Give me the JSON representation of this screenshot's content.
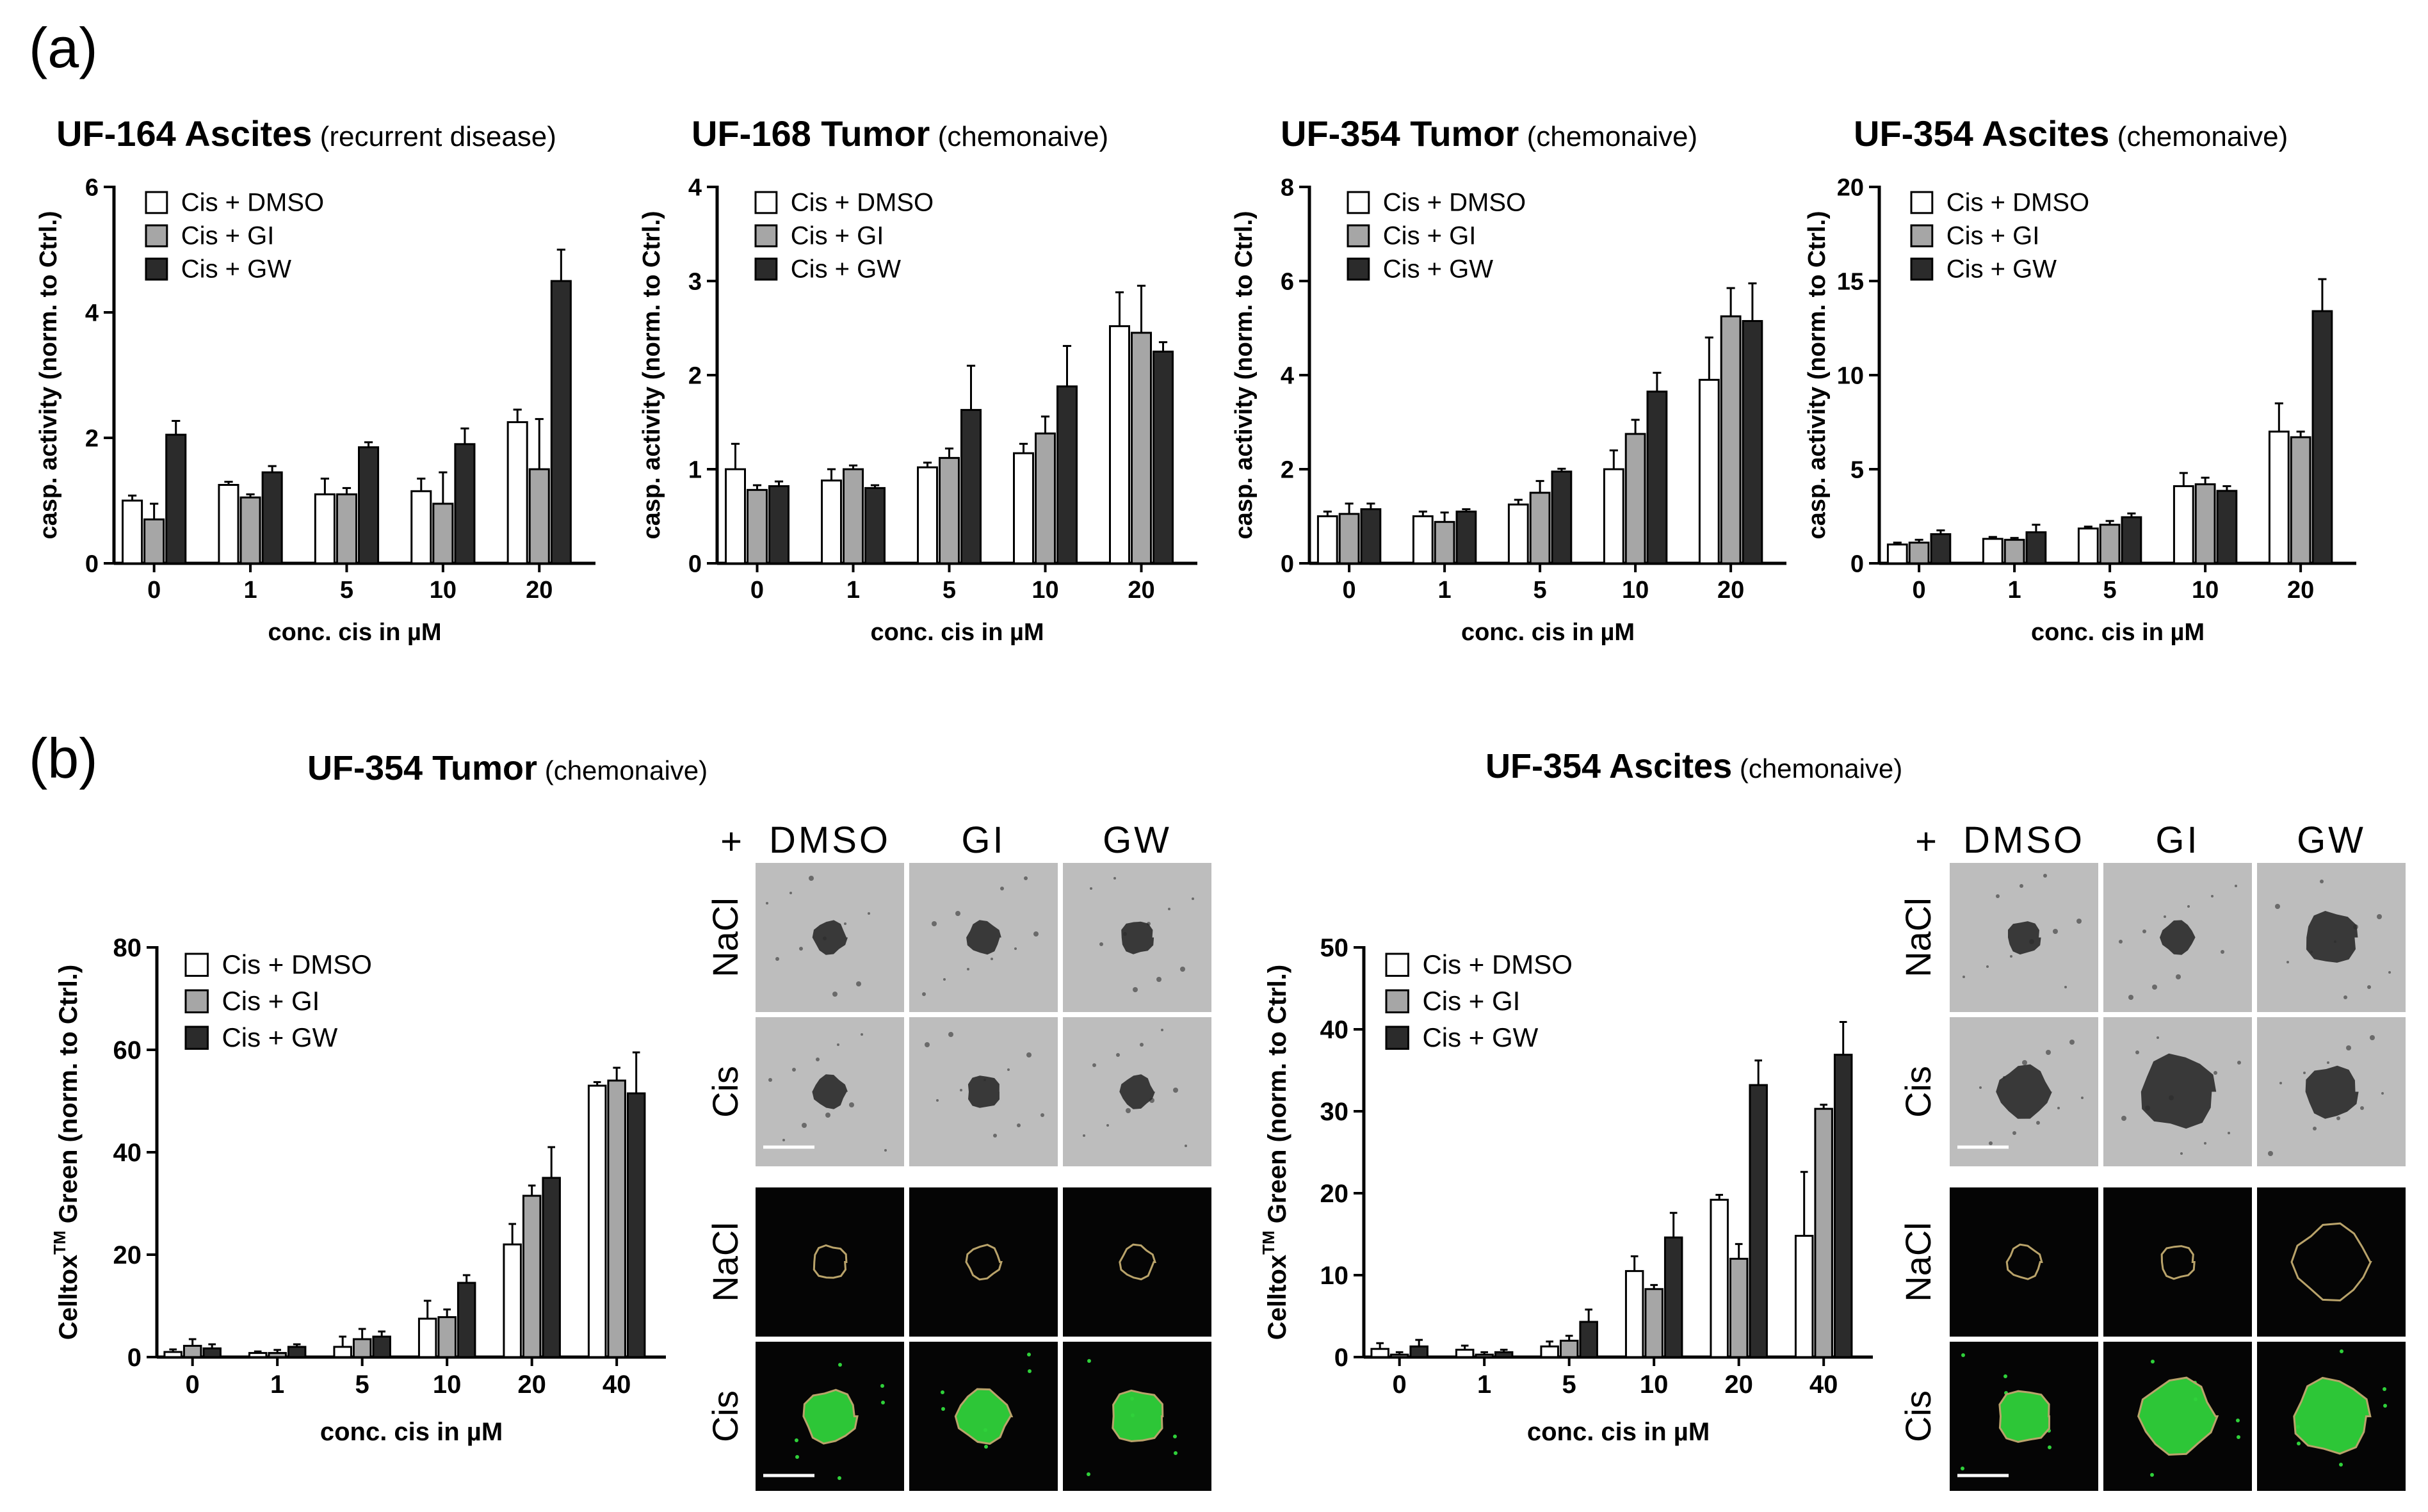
{
  "figure": {
    "panel_a_label": "(a)",
    "panel_b_label": "(b)",
    "colors": {
      "dmso": "#ffffff",
      "gi": "#a6a6a6",
      "gw": "#2b2b2b",
      "axis": "#000000"
    },
    "series_labels": [
      "Cis + DMSO",
      "Cis + GI",
      "Cis + GW"
    ]
  },
  "chart_data": [
    {
      "type": "bar",
      "title_bold": "UF-164 Ascites",
      "title_sub": "(recurrent disease)",
      "ylabel": "casp. activity (norm. to Ctrl.)",
      "xlabel": "conc. cis in µM",
      "categories": [
        "0",
        "1",
        "5",
        "10",
        "20"
      ],
      "ylim": [
        0,
        6
      ],
      "yticks": [
        "0",
        "2",
        "4",
        "6"
      ],
      "yticks_num": [
        0,
        2,
        4,
        6
      ],
      "ylabel_sup": "",
      "legend_position": "top-left",
      "grid": false,
      "series": [
        {
          "name": "Cis + DMSO",
          "values": [
            1.0,
            1.25,
            1.1,
            1.15,
            2.25
          ],
          "errors": [
            0.08,
            0.05,
            0.25,
            0.2,
            0.2
          ]
        },
        {
          "name": "Cis + GI",
          "values": [
            0.7,
            1.05,
            1.1,
            0.95,
            1.5
          ],
          "errors": [
            0.25,
            0.05,
            0.1,
            0.5,
            0.8
          ]
        },
        {
          "name": "Cis + GW",
          "values": [
            2.05,
            1.45,
            1.85,
            1.9,
            4.5
          ],
          "errors": [
            0.22,
            0.1,
            0.08,
            0.25,
            0.5
          ]
        }
      ]
    },
    {
      "type": "bar",
      "title_bold": "UF-168 Tumor",
      "title_sub": "(chemonaive)",
      "ylabel": "casp. activity (norm. to Ctrl.)",
      "xlabel": "conc. cis in µM",
      "categories": [
        "0",
        "1",
        "5",
        "10",
        "20"
      ],
      "ylim": [
        0,
        4
      ],
      "yticks": [
        "0",
        "1",
        "2",
        "3",
        "4"
      ],
      "yticks_num": [
        0,
        1,
        2,
        3,
        4
      ],
      "ylabel_sup": "",
      "legend_position": "top-left",
      "grid": false,
      "series": [
        {
          "name": "Cis + DMSO",
          "values": [
            1.0,
            0.88,
            1.02,
            1.17,
            2.52
          ],
          "errors": [
            0.27,
            0.12,
            0.05,
            0.1,
            0.36
          ]
        },
        {
          "name": "Cis + GI",
          "values": [
            0.78,
            1.0,
            1.12,
            1.38,
            2.45
          ],
          "errors": [
            0.05,
            0.04,
            0.1,
            0.18,
            0.5
          ]
        },
        {
          "name": "Cis + GW",
          "values": [
            0.82,
            0.8,
            1.63,
            1.88,
            2.25
          ],
          "errors": [
            0.05,
            0.03,
            0.47,
            0.43,
            0.1
          ]
        }
      ]
    },
    {
      "type": "bar",
      "title_bold": "UF-354 Tumor",
      "title_sub": "(chemonaive)",
      "ylabel": "casp. activity (norm. to Ctrl.)",
      "xlabel": "conc. cis in µM",
      "categories": [
        "0",
        "1",
        "5",
        "10",
        "20"
      ],
      "ylim": [
        0,
        8
      ],
      "yticks": [
        "0",
        "2",
        "4",
        "6",
        "8"
      ],
      "yticks_num": [
        0,
        2,
        4,
        6,
        8
      ],
      "ylabel_sup": "",
      "legend_position": "top-left",
      "grid": false,
      "series": [
        {
          "name": "Cis + DMSO",
          "values": [
            1.0,
            1.0,
            1.25,
            2.0,
            3.9
          ],
          "errors": [
            0.1,
            0.1,
            0.1,
            0.4,
            0.9
          ]
        },
        {
          "name": "Cis + GI",
          "values": [
            1.05,
            0.88,
            1.5,
            2.75,
            5.25
          ],
          "errors": [
            0.22,
            0.2,
            0.25,
            0.3,
            0.6
          ]
        },
        {
          "name": "Cis + GW",
          "values": [
            1.15,
            1.1,
            1.95,
            3.65,
            5.15
          ],
          "errors": [
            0.12,
            0.05,
            0.06,
            0.4,
            0.8
          ]
        }
      ]
    },
    {
      "type": "bar",
      "title_bold": "UF-354 Ascites",
      "title_sub": "(chemonaive)",
      "ylabel": "casp. activity (norm. to Ctrl.)",
      "xlabel": "conc. cis in µM",
      "categories": [
        "0",
        "1",
        "5",
        "10",
        "20"
      ],
      "ylim": [
        0,
        20
      ],
      "yticks": [
        "0",
        "5",
        "10",
        "15",
        "20"
      ],
      "yticks_num": [
        0,
        5,
        10,
        15,
        20
      ],
      "ylabel_sup": "",
      "legend_position": "top-left",
      "grid": false,
      "series": [
        {
          "name": "Cis + DMSO",
          "values": [
            1.0,
            1.3,
            1.85,
            4.1,
            7.0
          ],
          "errors": [
            0.1,
            0.1,
            0.1,
            0.7,
            1.5
          ]
        },
        {
          "name": "Cis + GI",
          "values": [
            1.1,
            1.25,
            2.05,
            4.2,
            6.7
          ],
          "errors": [
            0.15,
            0.1,
            0.2,
            0.35,
            0.3
          ]
        },
        {
          "name": "Cis + GW",
          "values": [
            1.55,
            1.65,
            2.45,
            3.85,
            13.4
          ],
          "errors": [
            0.2,
            0.4,
            0.2,
            0.25,
            1.7
          ]
        }
      ]
    },
    {
      "type": "bar",
      "title_bold": "UF-354 Tumor",
      "title_sub": "(chemonaive)",
      "ylabel": "Celltox Green (norm. to Ctrl.)",
      "ylabel_sup": "TM",
      "xlabel": "conc. cis in µM",
      "categories": [
        "0",
        "1",
        "5",
        "10",
        "20",
        "40"
      ],
      "ylim": [
        0,
        80
      ],
      "yticks": [
        "0",
        "20",
        "40",
        "60",
        "80"
      ],
      "yticks_num": [
        0,
        20,
        40,
        60,
        80
      ],
      "legend_position": "top-left",
      "grid": false,
      "series": [
        {
          "name": "Cis + DMSO",
          "values": [
            1.0,
            0.8,
            2.0,
            7.5,
            22.0,
            53.0
          ],
          "errors": [
            0.5,
            0.3,
            2.0,
            3.5,
            4.0,
            0.7
          ]
        },
        {
          "name": "Cis + GI",
          "values": [
            2.2,
            0.8,
            3.5,
            7.8,
            31.5,
            54.0
          ],
          "errors": [
            1.3,
            0.6,
            2.0,
            1.5,
            2.0,
            2.5
          ]
        },
        {
          "name": "Cis + GW",
          "values": [
            1.7,
            2.0,
            4.0,
            14.5,
            35.0,
            51.5
          ],
          "errors": [
            0.8,
            0.5,
            1.0,
            1.5,
            6.0,
            8.0
          ]
        }
      ]
    },
    {
      "type": "bar",
      "title_bold": "UF-354 Ascites",
      "title_sub": "(chemonaive)",
      "ylabel": "Celltox Green (norm. to Ctrl.)",
      "ylabel_sup": "TM",
      "xlabel": "conc. cis in µM",
      "categories": [
        "0",
        "1",
        "5",
        "10",
        "20",
        "40"
      ],
      "ylim": [
        0,
        50
      ],
      "yticks": [
        "0",
        "10",
        "20",
        "30",
        "40",
        "50"
      ],
      "yticks_num": [
        0,
        10,
        20,
        30,
        40,
        50
      ],
      "legend_position": "top-left",
      "grid": false,
      "series": [
        {
          "name": "Cis + DMSO",
          "values": [
            1.0,
            0.9,
            1.3,
            10.5,
            19.2,
            14.8
          ],
          "errors": [
            0.7,
            0.5,
            0.6,
            1.8,
            0.6,
            7.8
          ]
        },
        {
          "name": "Cis + GI",
          "values": [
            0.3,
            0.3,
            2.0,
            8.3,
            12.0,
            30.3
          ],
          "errors": [
            0.3,
            0.3,
            0.6,
            0.5,
            1.8,
            0.5
          ]
        },
        {
          "name": "Cis + GW",
          "values": [
            1.3,
            0.6,
            4.3,
            14.6,
            33.2,
            36.9
          ],
          "errors": [
            0.8,
            0.3,
            1.5,
            3.0,
            3.0,
            4.0
          ]
        }
      ]
    }
  ],
  "micrographs": [
    {
      "plus": "+",
      "col_labels": [
        "DMSO",
        "GI",
        "GW"
      ],
      "row_labels": [
        "NaCl",
        "Cis",
        "NaCl",
        "Cis"
      ],
      "bf_sizes": [
        "small",
        "small",
        "small",
        "small",
        "small",
        "small"
      ],
      "fl_sizes": [
        "small",
        "small",
        "small",
        "medium",
        "medium",
        "medium"
      ]
    },
    {
      "plus": "+",
      "col_labels": [
        "DMSO",
        "GI",
        "GW"
      ],
      "row_labels": [
        "NaCl",
        "Cis",
        "NaCl",
        "Cis"
      ],
      "bf_sizes": [
        "small",
        "small",
        "medium",
        "medium",
        "large",
        "medium"
      ],
      "fl_sizes": [
        "small",
        "small",
        "large",
        "medium",
        "large",
        "large"
      ]
    }
  ]
}
